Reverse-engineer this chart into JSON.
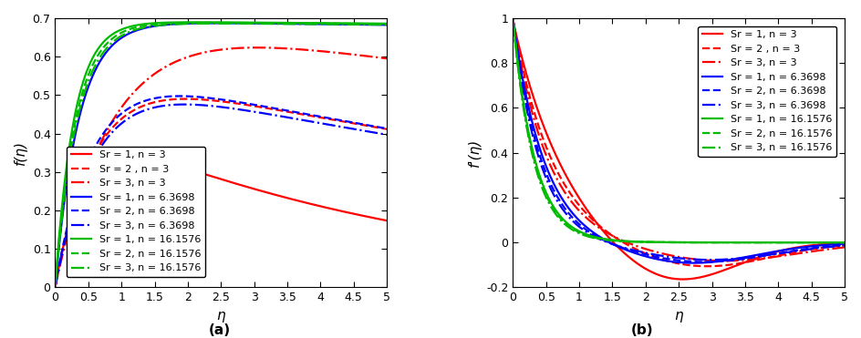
{
  "title_a": "(a)",
  "title_b": "(b)",
  "xlabel": "η",
  "ylabel_a": "f(η)",
  "ylabel_b": "f'(η)",
  "xlim": [
    0,
    5
  ],
  "ylim_a": [
    0,
    0.7
  ],
  "ylim_b": [
    -0.2,
    1.0
  ],
  "xticks": [
    0,
    0.5,
    1,
    1.5,
    2,
    2.5,
    3,
    3.5,
    4,
    4.5,
    5
  ],
  "yticks_a": [
    0,
    0.1,
    0.2,
    0.3,
    0.4,
    0.5,
    0.6,
    0.7
  ],
  "yticks_b": [
    -0.2,
    0,
    0.2,
    0.4,
    0.6,
    0.8,
    1.0
  ],
  "colors": {
    "red": "#FF0000",
    "blue": "#0000FF",
    "green": "#00BB00"
  },
  "legend_entries": [
    {
      "label": "Sr = 1, n = 3",
      "color": "red",
      "ls": "-"
    },
    {
      "label": "Sr = 2 , n = 3",
      "color": "red",
      "ls": "--"
    },
    {
      "label": "Sr = 3, n = 3",
      "color": "red",
      "ls": "-."
    },
    {
      "label": "Sr = 1, n = 6.3698",
      "color": "blue",
      "ls": "-"
    },
    {
      "label": "Sr = 2, n = 6.3698",
      "color": "blue",
      "ls": "--"
    },
    {
      "label": "Sr = 3, n = 6.3698",
      "color": "blue",
      "ls": "-."
    },
    {
      "label": "Sr = 1, n = 16.1576",
      "color": "green",
      "ls": "-"
    },
    {
      "label": "Sr = 2, n = 16.1576",
      "color": "green",
      "ls": "--"
    },
    {
      "label": "Sr = 3, n = 16.1576",
      "color": "green",
      "ls": "-."
    }
  ],
  "linewidth": 1.6,
  "fontsize_label": 11,
  "fontsize_tick": 9,
  "fontsize_legend": 8.0,
  "fontsize_title": 11,
  "curves_a": {
    "r1": {
      "a": 0.46,
      "b": 2.2,
      "c": 0.195
    },
    "r2": {
      "a": 0.59,
      "b": 1.6,
      "c": 0.072
    },
    "r3": {
      "a": 0.73,
      "b": 1.1,
      "c": 0.04
    },
    "bl1": {
      "a": 0.693,
      "b": 2.8,
      "c": 0.003
    },
    "bl2": {
      "a": 0.595,
      "b": 1.7,
      "c": 0.073
    },
    "bl3": {
      "a": 0.575,
      "b": 1.6,
      "c": 0.074
    },
    "g1": {
      "a": 0.693,
      "b": 3.5,
      "c": 0.002
    },
    "g2": {
      "a": 0.692,
      "b": 3.2,
      "c": 0.002
    },
    "g3": {
      "a": 0.69,
      "b": 3.0,
      "c": 0.002
    }
  },
  "curves_b": {
    "r1": {
      "decay": 1.3,
      "neg_amp": 0.205,
      "neg_ctr": 2.35,
      "neg_wid": 0.95
    },
    "r2": {
      "decay": 1.65,
      "neg_amp": 0.115,
      "neg_ctr": 2.8,
      "neg_wid": 1.05
    },
    "r3": {
      "decay": 1.85,
      "neg_amp": 0.085,
      "neg_ctr": 3.1,
      "neg_wid": 1.15
    },
    "bl1": {
      "decay": 2.1,
      "neg_amp": 0.095,
      "neg_ctr": 2.65,
      "neg_wid": 1.0
    },
    "bl2": {
      "decay": 2.3,
      "neg_amp": 0.088,
      "neg_ctr": 2.85,
      "neg_wid": 1.05
    },
    "bl3": {
      "decay": 2.45,
      "neg_amp": 0.078,
      "neg_ctr": 2.95,
      "neg_wid": 1.1
    },
    "g1": {
      "decay": 3.0,
      "neg_amp": 0.0,
      "neg_ctr": 3.0,
      "neg_wid": 1.0
    },
    "g2": {
      "decay": 3.1,
      "neg_amp": 0.0,
      "neg_ctr": 3.0,
      "neg_wid": 1.0
    },
    "g3": {
      "decay": 3.2,
      "neg_amp": 0.0,
      "neg_ctr": 3.0,
      "neg_wid": 1.0
    }
  }
}
